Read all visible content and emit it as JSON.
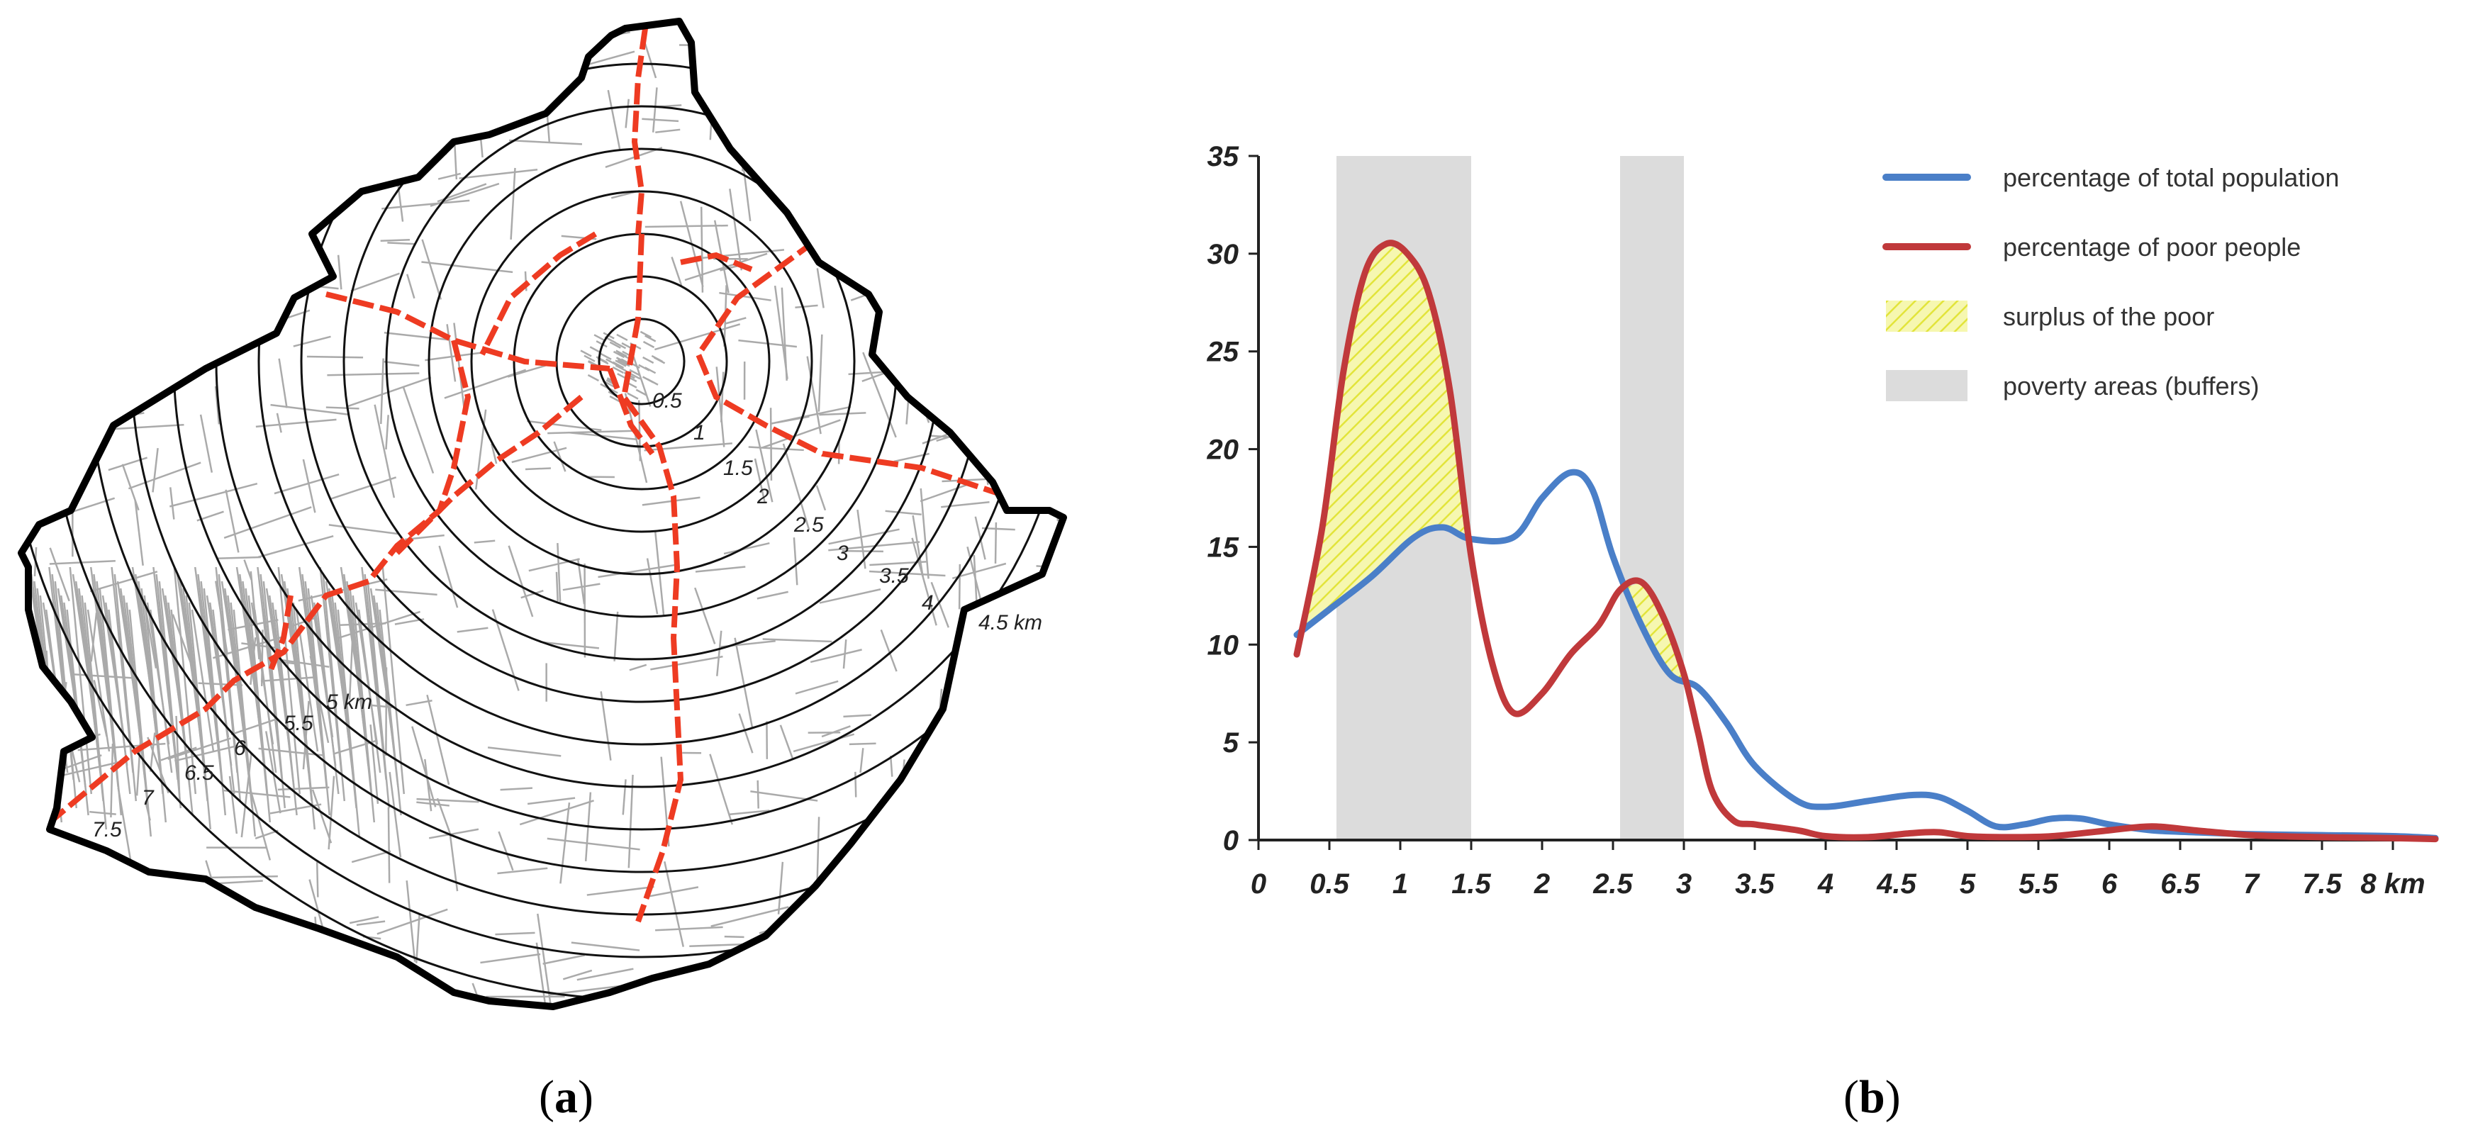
{
  "panels": {
    "a": {
      "label": "a"
    },
    "b": {
      "label": "b"
    }
  },
  "map": {
    "ring_labels": [
      "0.5",
      "1",
      "1.5",
      "2",
      "2.5",
      "3",
      "3.5",
      "4",
      "4.5 km",
      "5 km",
      "5.5",
      "6",
      "6.5",
      "7",
      "7.5"
    ],
    "colors": {
      "roads": "#aaaaaa",
      "main_roads": "#ee3b22",
      "rings": "#111111",
      "boundary": "#000000"
    }
  },
  "chart_data": {
    "type": "line",
    "x_unit": "km",
    "xlim": [
      0,
      8
    ],
    "ylim": [
      0,
      35
    ],
    "x_ticks": [
      "0",
      "0.5",
      "1",
      "1.5",
      "2",
      "2.5",
      "3",
      "3.5",
      "4",
      "4.5",
      "5",
      "5.5",
      "6",
      "6.5",
      "7",
      "7.5",
      "8 km"
    ],
    "y_ticks": [
      "0",
      "5",
      "10",
      "15",
      "20",
      "25",
      "30",
      "35"
    ],
    "grid": false,
    "legend_position": "top-right",
    "series": [
      {
        "name": "percentage of total population",
        "color": "#4a7fc8",
        "x": [
          0.27,
          0.5,
          0.8,
          1.1,
          1.3,
          1.5,
          1.8,
          2.0,
          2.2,
          2.35,
          2.5,
          2.7,
          2.9,
          3.1,
          3.3,
          3.5,
          3.8,
          4.0,
          4.3,
          4.6,
          4.8,
          5.0,
          5.2,
          5.4,
          5.6,
          5.8,
          6.0,
          6.3,
          6.6,
          7.0,
          7.5,
          8.0,
          8.3
        ],
        "y": [
          10.5,
          11.8,
          13.5,
          15.5,
          16.0,
          15.4,
          15.5,
          17.5,
          18.8,
          18.0,
          14.5,
          11.0,
          8.5,
          7.8,
          6.0,
          3.8,
          2.0,
          1.7,
          2.0,
          2.3,
          2.2,
          1.5,
          0.7,
          0.8,
          1.1,
          1.1,
          0.8,
          0.5,
          0.4,
          0.3,
          0.25,
          0.2,
          0.1
        ]
      },
      {
        "name": "percentage of poor people",
        "color": "#c0393b",
        "x": [
          0.27,
          0.45,
          0.6,
          0.75,
          0.9,
          1.05,
          1.2,
          1.35,
          1.5,
          1.65,
          1.8,
          2.0,
          2.2,
          2.4,
          2.55,
          2.7,
          2.85,
          3.0,
          3.1,
          3.2,
          3.35,
          3.5,
          3.8,
          4.0,
          4.3,
          4.6,
          4.8,
          5.0,
          5.3,
          5.6,
          6.0,
          6.3,
          6.6,
          7.0,
          7.5,
          8.0,
          8.3
        ],
        "y": [
          9.5,
          16.0,
          24.0,
          29.0,
          30.5,
          30.0,
          28.0,
          23.0,
          14.5,
          9.0,
          6.5,
          7.5,
          9.5,
          11.0,
          12.8,
          13.2,
          11.5,
          8.5,
          5.5,
          2.5,
          1.0,
          0.8,
          0.5,
          0.2,
          0.15,
          0.35,
          0.4,
          0.2,
          0.15,
          0.2,
          0.5,
          0.7,
          0.5,
          0.25,
          0.15,
          0.1,
          0.05
        ]
      }
    ],
    "shaded_bands": [
      {
        "label": "poverty areas (buffers)",
        "from": 0.55,
        "to": 1.5
      },
      {
        "label": "poverty areas (buffers)",
        "from": 2.55,
        "to": 3.0
      }
    ],
    "legend": [
      {
        "label": "percentage of total population",
        "kind": "line",
        "color": "#4a7fc8"
      },
      {
        "label": "percentage of poor people",
        "kind": "line",
        "color": "#c0393b"
      },
      {
        "label": "surplus of the poor",
        "kind": "hatch",
        "color": "#eef07a"
      },
      {
        "label": "poverty areas (buffers)",
        "kind": "band",
        "color": "#dcdcdc"
      }
    ],
    "surplus_fill": {
      "label": "surplus of the poor",
      "color": "#f4f5a0",
      "hatch_color": "#e4e632"
    }
  }
}
